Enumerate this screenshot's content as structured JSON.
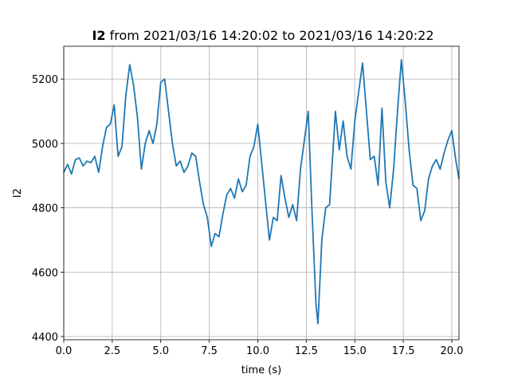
{
  "chart_data": {
    "type": "line",
    "title_prefix": "I2",
    "title": "from 2021/03/16 14:20:02 to 2021/03/16 14:20:22",
    "x_label": "time (s)",
    "y_label": "I2",
    "x": [
      0.0,
      0.2,
      0.4,
      0.6,
      0.8,
      1.0,
      1.2,
      1.4,
      1.6,
      1.8,
      2.0,
      2.2,
      2.4,
      2.6,
      2.8,
      3.0,
      3.2,
      3.4,
      3.6,
      3.8,
      4.0,
      4.2,
      4.4,
      4.6,
      4.8,
      5.0,
      5.2,
      5.4,
      5.6,
      5.8,
      6.0,
      6.2,
      6.4,
      6.6,
      6.8,
      7.0,
      7.2,
      7.4,
      7.6,
      7.8,
      8.0,
      8.2,
      8.4,
      8.6,
      8.8,
      9.0,
      9.2,
      9.4,
      9.6,
      9.8,
      10.0,
      10.2,
      10.4,
      10.6,
      10.8,
      11.0,
      11.2,
      11.4,
      11.6,
      11.8,
      12.0,
      12.2,
      12.4,
      12.6,
      12.8,
      13.0,
      13.1,
      13.3,
      13.5,
      13.7,
      13.9,
      14.0,
      14.2,
      14.4,
      14.6,
      14.8,
      15.0,
      15.2,
      15.4,
      15.6,
      15.8,
      16.0,
      16.2,
      16.4,
      16.6,
      16.8,
      17.0,
      17.2,
      17.4,
      17.6,
      17.8,
      18.0,
      18.2,
      18.4,
      18.6,
      18.8,
      19.0,
      19.2,
      19.4,
      19.6,
      19.8,
      20.0,
      20.2,
      20.37
    ],
    "series": [
      {
        "name": "I2",
        "color": "#1f77b4",
        "values": [
          4910,
          4935,
          4905,
          4950,
          4955,
          4930,
          4945,
          4940,
          4960,
          4910,
          4990,
          5050,
          5060,
          5120,
          4960,
          4990,
          5150,
          5245,
          5180,
          5080,
          4920,
          5000,
          5040,
          5000,
          5060,
          5190,
          5200,
          5100,
          5000,
          4930,
          4945,
          4910,
          4930,
          4970,
          4960,
          4880,
          4810,
          4770,
          4680,
          4720,
          4710,
          4780,
          4840,
          4860,
          4830,
          4890,
          4850,
          4870,
          4960,
          4990,
          5060,
          4940,
          4820,
          4700,
          4770,
          4760,
          4900,
          4830,
          4770,
          4810,
          4760,
          4920,
          5010,
          5100,
          4780,
          4500,
          4440,
          4700,
          4800,
          4810,
          5000,
          5100,
          4980,
          5070,
          4960,
          4920,
          5070,
          5160,
          5250,
          5100,
          4950,
          4960,
          4870,
          5110,
          4880,
          4800,
          4920,
          5100,
          5260,
          5130,
          4980,
          4870,
          4860,
          4760,
          4790,
          4890,
          4930,
          4950,
          4920,
          4970,
          5010,
          5040,
          4950,
          4890
        ]
      }
    ],
    "xlim": [
      0,
      20.37
    ],
    "ylim": [
      4390,
      5302
    ],
    "xticks": [
      {
        "value": 0,
        "label": "0.0"
      },
      2.5,
      {
        "value": 5,
        "label": "5.0"
      },
      7.5,
      {
        "value": 10,
        "label": "10.0"
      },
      12.5,
      {
        "value": 15,
        "label": "15.0"
      },
      17.5,
      {
        "value": 20,
        "label": "20.0"
      }
    ],
    "yticks": [
      4400,
      4600,
      4800,
      5000,
      5200
    ],
    "grid": true
  }
}
